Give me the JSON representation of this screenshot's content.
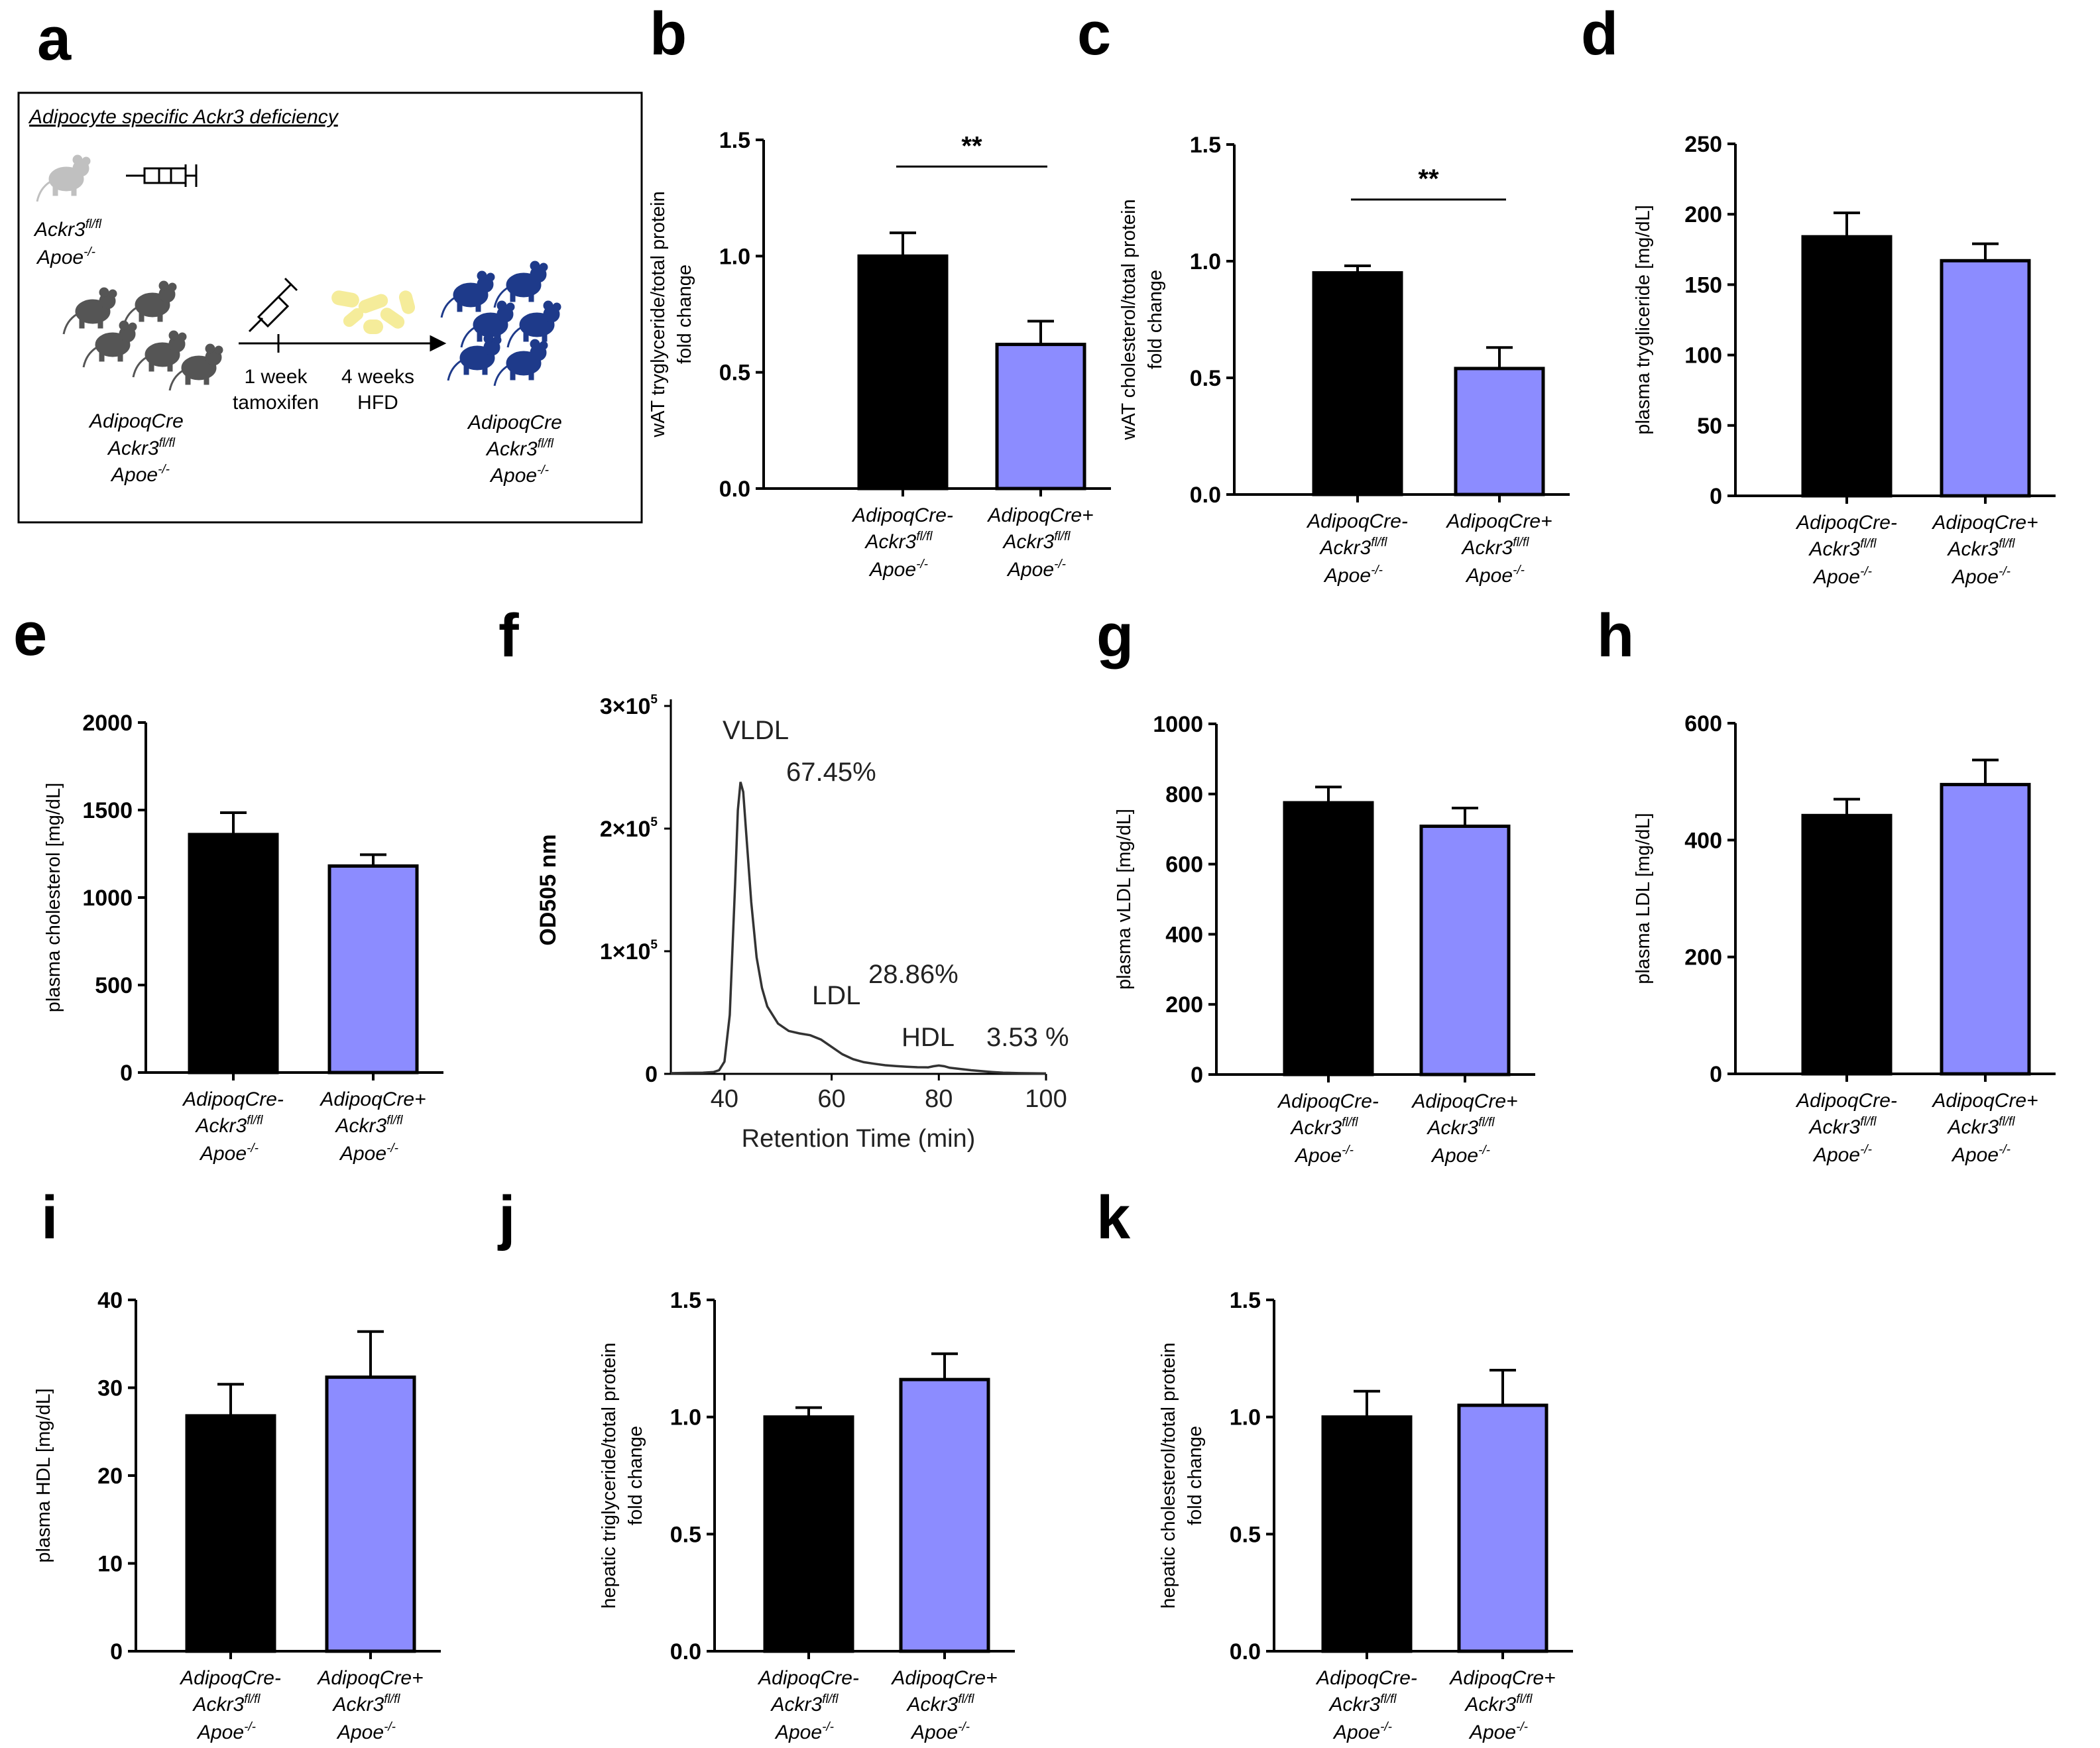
{
  "colors": {
    "control": "#000000",
    "ko": "#8c8cff",
    "schematic_dark": "#555555",
    "schematic_light": "#c0c0c0",
    "schematic_blue": "#1e3a8a",
    "schematic_hfd": "#f5ec9a"
  },
  "schematic": {
    "letter": "a",
    "title": "Adipocyte specific Ackr3 deficiency",
    "mouse1_line1": "Ackr3",
    "mouse1_line1_sup": "fl/fl",
    "mouse1_line2": "Apoe",
    "mouse1_line2_sup": "-/-",
    "mouse2_line1": "AdipoqCre",
    "mouse2_line2": "Ackr3",
    "mouse2_line2_sup": "fl/fl",
    "mouse2_line3": "Apoe",
    "mouse2_line3_sup": "-/-",
    "mouse3_line1": "AdipoqCre",
    "mouse3_line2": "Ackr3",
    "mouse3_line2_sup": "fl/fl",
    "mouse3_line3": "Apoe",
    "mouse3_line3_sup": "-/-",
    "step1_line1": "1 week",
    "step1_line2": "tamoxifen",
    "step2_line1": "4 weeks",
    "step2_line2": "HFD"
  },
  "categories": [
    {
      "l1": "AdipoqCre-",
      "l2": "Ackr3",
      "l2sup": "fl/fl",
      "l3": "Apoe",
      "l3sup": "-/-"
    },
    {
      "l1": "AdipoqCre+",
      "l2": "Ackr3",
      "l2sup": "fl/fl",
      "l3": "Apoe",
      "l3sup": "-/-"
    }
  ],
  "chart_data": [
    {
      "id": "b",
      "letter": "b",
      "type": "bar",
      "ylabel": [
        "wAT tryglyceride/total protein",
        "fold change"
      ],
      "ylim": [
        0,
        1.5
      ],
      "yticks": [
        "0.0",
        "0.5",
        "1.0",
        "1.5"
      ],
      "series": [
        {
          "name": "AdipoqCre-",
          "value": 1.0,
          "error": 0.1
        },
        {
          "name": "AdipoqCre+",
          "value": 0.62,
          "error": 0.1
        }
      ],
      "significance": "**"
    },
    {
      "id": "c",
      "letter": "c",
      "type": "bar",
      "ylabel": [
        "wAT cholesterol/total protein",
        "fold change"
      ],
      "ylim": [
        0,
        1.5
      ],
      "yticks": [
        "0.0",
        "0.5",
        "1.0",
        "1.5"
      ],
      "series": [
        {
          "name": "AdipoqCre-",
          "value": 0.95,
          "error": 0.03
        },
        {
          "name": "AdipoqCre+",
          "value": 0.54,
          "error": 0.09
        }
      ],
      "significance": "**"
    },
    {
      "id": "d",
      "letter": "d",
      "type": "bar",
      "ylabel": [
        "plasma trygliceride [mg/dL]"
      ],
      "ylim": [
        0,
        250
      ],
      "yticks": [
        "0",
        "50",
        "100",
        "150",
        "200",
        "250"
      ],
      "series": [
        {
          "name": "AdipoqCre-",
          "value": 184,
          "error": 17
        },
        {
          "name": "AdipoqCre+",
          "value": 167,
          "error": 12
        }
      ],
      "significance": ""
    },
    {
      "id": "e",
      "letter": "e",
      "type": "bar",
      "ylabel": [
        "plasma cholesterol [mg/dL]"
      ],
      "ylim": [
        0,
        2000
      ],
      "yticks": [
        "0",
        "500",
        "1000",
        "1500",
        "2000"
      ],
      "series": [
        {
          "name": "AdipoqCre-",
          "value": 1360,
          "error": 125
        },
        {
          "name": "AdipoqCre+",
          "value": 1180,
          "error": 65
        }
      ],
      "significance": ""
    },
    {
      "id": "f",
      "letter": "f",
      "type": "line",
      "xlabel": "Retention Time (min)",
      "ylabel": "OD505 nm",
      "xlim": [
        30,
        100
      ],
      "ylim": [
        0,
        300000
      ],
      "xticks": [
        "40",
        "60",
        "80",
        "100"
      ],
      "xtick_values": [
        40,
        60,
        80,
        100
      ],
      "yticks": [
        "0",
        "1×10",
        "2×10",
        "3×10"
      ],
      "ytick_sups": [
        "",
        "5",
        "5",
        "5"
      ],
      "x": [
        30,
        33,
        36,
        38,
        39,
        40,
        41,
        42,
        42.5,
        43,
        43.5,
        44,
        45,
        46,
        47,
        48,
        50,
        52,
        54,
        56,
        58,
        60,
        62,
        64,
        66,
        68,
        70,
        72,
        74,
        76,
        78,
        79,
        80,
        81,
        82,
        84,
        86,
        88,
        90,
        92,
        95,
        100
      ],
      "y": [
        600,
        800,
        1000,
        1500,
        3000,
        10000,
        48000,
        155000,
        215000,
        238000,
        230000,
        200000,
        140000,
        95000,
        70000,
        55000,
        41000,
        35000,
        33000,
        31500,
        28000,
        22000,
        16000,
        12000,
        9500,
        8200,
        7000,
        6300,
        5800,
        5400,
        5300,
        6200,
        6800,
        6200,
        5000,
        4000,
        3000,
        2200,
        1500,
        1000,
        600,
        300
      ],
      "peaks": [
        {
          "label": "VLDL",
          "percent": "67.45%"
        },
        {
          "label": "LDL",
          "percent": "28.86%"
        },
        {
          "label": "HDL",
          "percent": "3.53  %"
        }
      ]
    },
    {
      "id": "g",
      "letter": "g",
      "type": "bar",
      "ylabel": [
        "plasma vLDL [mg/dL]"
      ],
      "ylim": [
        0,
        1000
      ],
      "yticks": [
        "0",
        "200",
        "400",
        "600",
        "800",
        "1000"
      ],
      "series": [
        {
          "name": "AdipoqCre-",
          "value": 775,
          "error": 45
        },
        {
          "name": "AdipoqCre+",
          "value": 708,
          "error": 52
        }
      ],
      "significance": ""
    },
    {
      "id": "h",
      "letter": "h",
      "type": "bar",
      "ylabel": [
        "plasma LDL [mg/dL]"
      ],
      "ylim": [
        0,
        600
      ],
      "yticks": [
        "0",
        "200",
        "400",
        "600"
      ],
      "series": [
        {
          "name": "AdipoqCre-",
          "value": 442,
          "error": 28
        },
        {
          "name": "AdipoqCre+",
          "value": 495,
          "error": 42
        }
      ],
      "significance": ""
    },
    {
      "id": "i",
      "letter": "i",
      "type": "bar",
      "ylabel": [
        "plasma HDL [mg/dL]"
      ],
      "ylim": [
        0,
        40
      ],
      "yticks": [
        "0",
        "10",
        "20",
        "30",
        "40"
      ],
      "series": [
        {
          "name": "AdipoqCre-",
          "value": 26.8,
          "error": 3.6
        },
        {
          "name": "AdipoqCre+",
          "value": 31.2,
          "error": 5.2
        }
      ],
      "significance": ""
    },
    {
      "id": "j",
      "letter": "j",
      "type": "bar",
      "ylabel": [
        "hepatic triglyceride/total protein",
        "fold change"
      ],
      "ylim": [
        0,
        1.5
      ],
      "yticks": [
        "0.0",
        "0.5",
        "1.0",
        "1.5"
      ],
      "series": [
        {
          "name": "AdipoqCre-",
          "value": 1.0,
          "error": 0.04
        },
        {
          "name": "AdipoqCre+",
          "value": 1.16,
          "error": 0.11
        }
      ],
      "significance": ""
    },
    {
      "id": "k",
      "letter": "k",
      "type": "bar",
      "ylabel": [
        "hepatic cholesterol/total protein",
        "fold change"
      ],
      "ylim": [
        0,
        1.5
      ],
      "yticks": [
        "0.0",
        "0.5",
        "1.0",
        "1.5"
      ],
      "series": [
        {
          "name": "AdipoqCre-",
          "value": 1.0,
          "error": 0.11
        },
        {
          "name": "AdipoqCre+",
          "value": 1.05,
          "error": 0.15
        }
      ],
      "significance": ""
    }
  ]
}
